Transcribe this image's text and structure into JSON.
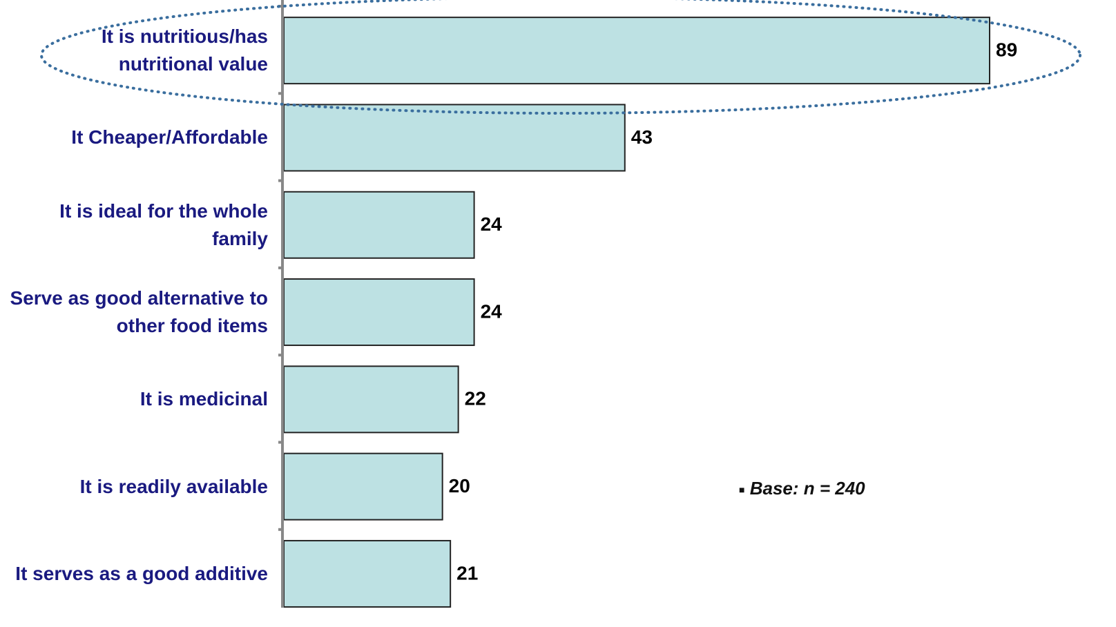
{
  "chart_data": {
    "type": "bar",
    "orientation": "horizontal",
    "categories": [
      "It is nutritious/has nutritional value",
      "It Cheaper/Affordable",
      "It is ideal for the whole family",
      "Serve as good alternative to other food items",
      "It is medicinal",
      "It is readily available",
      "It serves as a good additive"
    ],
    "values": [
      89,
      43,
      24,
      24,
      22,
      20,
      21
    ],
    "color": "#bde1e3",
    "note": "Base: n = 240"
  }
}
